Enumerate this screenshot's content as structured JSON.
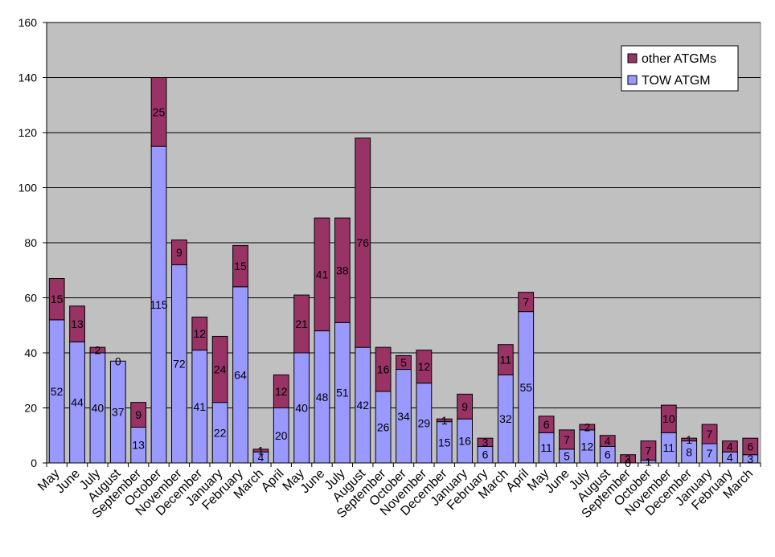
{
  "chart_data": {
    "type": "bar",
    "stacked": true,
    "categories": [
      "May",
      "June",
      "July",
      "August",
      "September",
      "October",
      "November",
      "December",
      "January",
      "February",
      "March",
      "April",
      "May",
      "June",
      "July",
      "August",
      "September",
      "October",
      "November",
      "December",
      "January",
      "February",
      "March",
      "April",
      "May",
      "June",
      "July",
      "August",
      "September",
      "October",
      "November",
      "December",
      "January",
      "February",
      "March"
    ],
    "series": [
      {
        "name": "TOW ATGM",
        "color": "#9999ff",
        "values": [
          52,
          44,
          40,
          37,
          13,
          115,
          72,
          41,
          22,
          64,
          4,
          20,
          40,
          48,
          51,
          42,
          26,
          34,
          29,
          15,
          16,
          6,
          32,
          55,
          11,
          5,
          12,
          6,
          0,
          1,
          11,
          8,
          7,
          4,
          3
        ]
      },
      {
        "name": "other ATGMs",
        "color": "#993366",
        "values": [
          15,
          13,
          2,
          0,
          9,
          25,
          9,
          12,
          24,
          15,
          1,
          12,
          21,
          41,
          38,
          76,
          16,
          5,
          12,
          1,
          9,
          3,
          11,
          7,
          6,
          7,
          2,
          4,
          3,
          7,
          10,
          1,
          7,
          4,
          6
        ]
      }
    ],
    "ylim": [
      0,
      160
    ],
    "yticks": [
      "0",
      "20",
      "40",
      "60",
      "80",
      "100",
      "120",
      "140",
      "160"
    ],
    "grid": true,
    "plot_background": "#c0c0c0",
    "legend_position": "top-right",
    "legend": [
      {
        "label": "other ATGMs",
        "color": "#993366"
      },
      {
        "label": "TOW ATGM",
        "color": "#9999ff"
      }
    ]
  }
}
